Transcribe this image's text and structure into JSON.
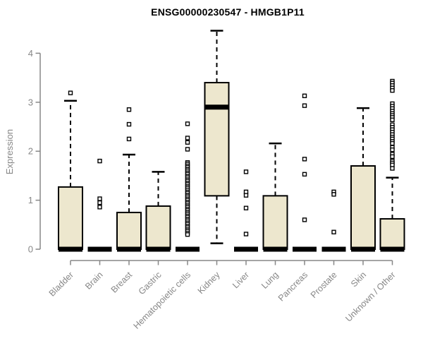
{
  "chart_data": {
    "type": "boxplot",
    "title": "ENSG00000230547 - HMGB1P11",
    "ylabel": "Expression",
    "xlabel": "",
    "ylim": [
      0,
      4.6
    ],
    "yticks": [
      0,
      1,
      2,
      3,
      4
    ],
    "grid": false,
    "legend": "none",
    "colors": {
      "box_fill": "#EDE7CE",
      "box_stroke": "#000000",
      "median": "#000000",
      "axis": "#878787",
      "tick_label": "#878787",
      "title": "#000000",
      "background": "#ffffff"
    },
    "categories": [
      "Bladder",
      "Brain",
      "Breast",
      "Gastric",
      "Hematopoietic cells",
      "Kidney",
      "Liver",
      "Lung",
      "Pancreas",
      "Prostate",
      "Skin",
      "Unknown / Other"
    ],
    "series": [
      {
        "label": "Bladder",
        "q1": 0,
        "median": 0,
        "q3": 1.27,
        "whisker_low": 0,
        "whisker_high": 3.03,
        "outliers": [
          3.19
        ]
      },
      {
        "label": "Brain",
        "q1": 0,
        "median": 0,
        "q3": 0,
        "whisker_low": 0,
        "whisker_high": 0,
        "outliers": [
          1.8,
          1.03,
          0.95,
          0.86
        ]
      },
      {
        "label": "Breast",
        "q1": 0,
        "median": 0,
        "q3": 0.75,
        "whisker_low": 0,
        "whisker_high": 1.93,
        "outliers": [
          2.85,
          2.55,
          2.25
        ]
      },
      {
        "label": "Gastric",
        "q1": 0,
        "median": 0,
        "q3": 0.88,
        "whisker_low": 0,
        "whisker_high": 1.58,
        "outliers": []
      },
      {
        "label": "Hematopoietic cells",
        "q1": 0,
        "median": 0,
        "q3": 0,
        "whisker_low": 0,
        "whisker_high": 0,
        "outliers": [
          2.56,
          2.27,
          2.18,
          2.04,
          1.77,
          1.74,
          1.7,
          1.67,
          1.63,
          1.6,
          1.56,
          1.53,
          1.49,
          1.46,
          1.42,
          1.39,
          1.35,
          1.32,
          1.28,
          1.25,
          1.21,
          1.17,
          1.14,
          1.1,
          1.07,
          1.03,
          1.0,
          0.96,
          0.93,
          0.89,
          0.86,
          0.82,
          0.79,
          0.75,
          0.72,
          0.68,
          0.65,
          0.61,
          0.58,
          0.54,
          0.51,
          0.47,
          0.44,
          0.4,
          0.37,
          0.33,
          0.3
        ]
      },
      {
        "label": "Kidney",
        "q1": 1.09,
        "median": 2.9,
        "q3": 3.4,
        "whisker_low": 0.12,
        "whisker_high": 4.46,
        "outliers": []
      },
      {
        "label": "Liver",
        "q1": 0,
        "median": 0,
        "q3": 0,
        "whisker_low": 0,
        "whisker_high": 0,
        "outliers": [
          1.58,
          1.17,
          1.1,
          0.84,
          0.31
        ]
      },
      {
        "label": "Lung",
        "q1": 0,
        "median": 0,
        "q3": 1.09,
        "whisker_low": 0,
        "whisker_high": 2.16,
        "outliers": []
      },
      {
        "label": "Pancreas",
        "q1": 0,
        "median": 0,
        "q3": 0,
        "whisker_low": 0,
        "whisker_high": 0,
        "outliers": [
          3.13,
          2.93,
          1.84,
          1.53,
          0.6
        ]
      },
      {
        "label": "Prostate",
        "q1": 0,
        "median": 0,
        "q3": 0,
        "whisker_low": 0,
        "whisker_high": 0,
        "outliers": [
          1.17,
          1.12,
          0.35
        ]
      },
      {
        "label": "Skin",
        "q1": 0,
        "median": 0,
        "q3": 1.7,
        "whisker_low": 0,
        "whisker_high": 2.88,
        "outliers": []
      },
      {
        "label": "Unknown / Other",
        "q1": 0,
        "median": 0,
        "q3": 0.62,
        "whisker_low": 0,
        "whisker_high": 1.46,
        "outliers": [
          3.43,
          3.39,
          3.34,
          3.29,
          3.24,
          2.97,
          2.92,
          2.87,
          2.82,
          2.77,
          2.73,
          2.69,
          2.64,
          2.54,
          2.49,
          2.44,
          2.39,
          2.34,
          2.29,
          2.25,
          2.2,
          2.16,
          2.08,
          2.03,
          1.94,
          1.89,
          1.8,
          1.76,
          1.72,
          1.65
        ]
      }
    ]
  }
}
